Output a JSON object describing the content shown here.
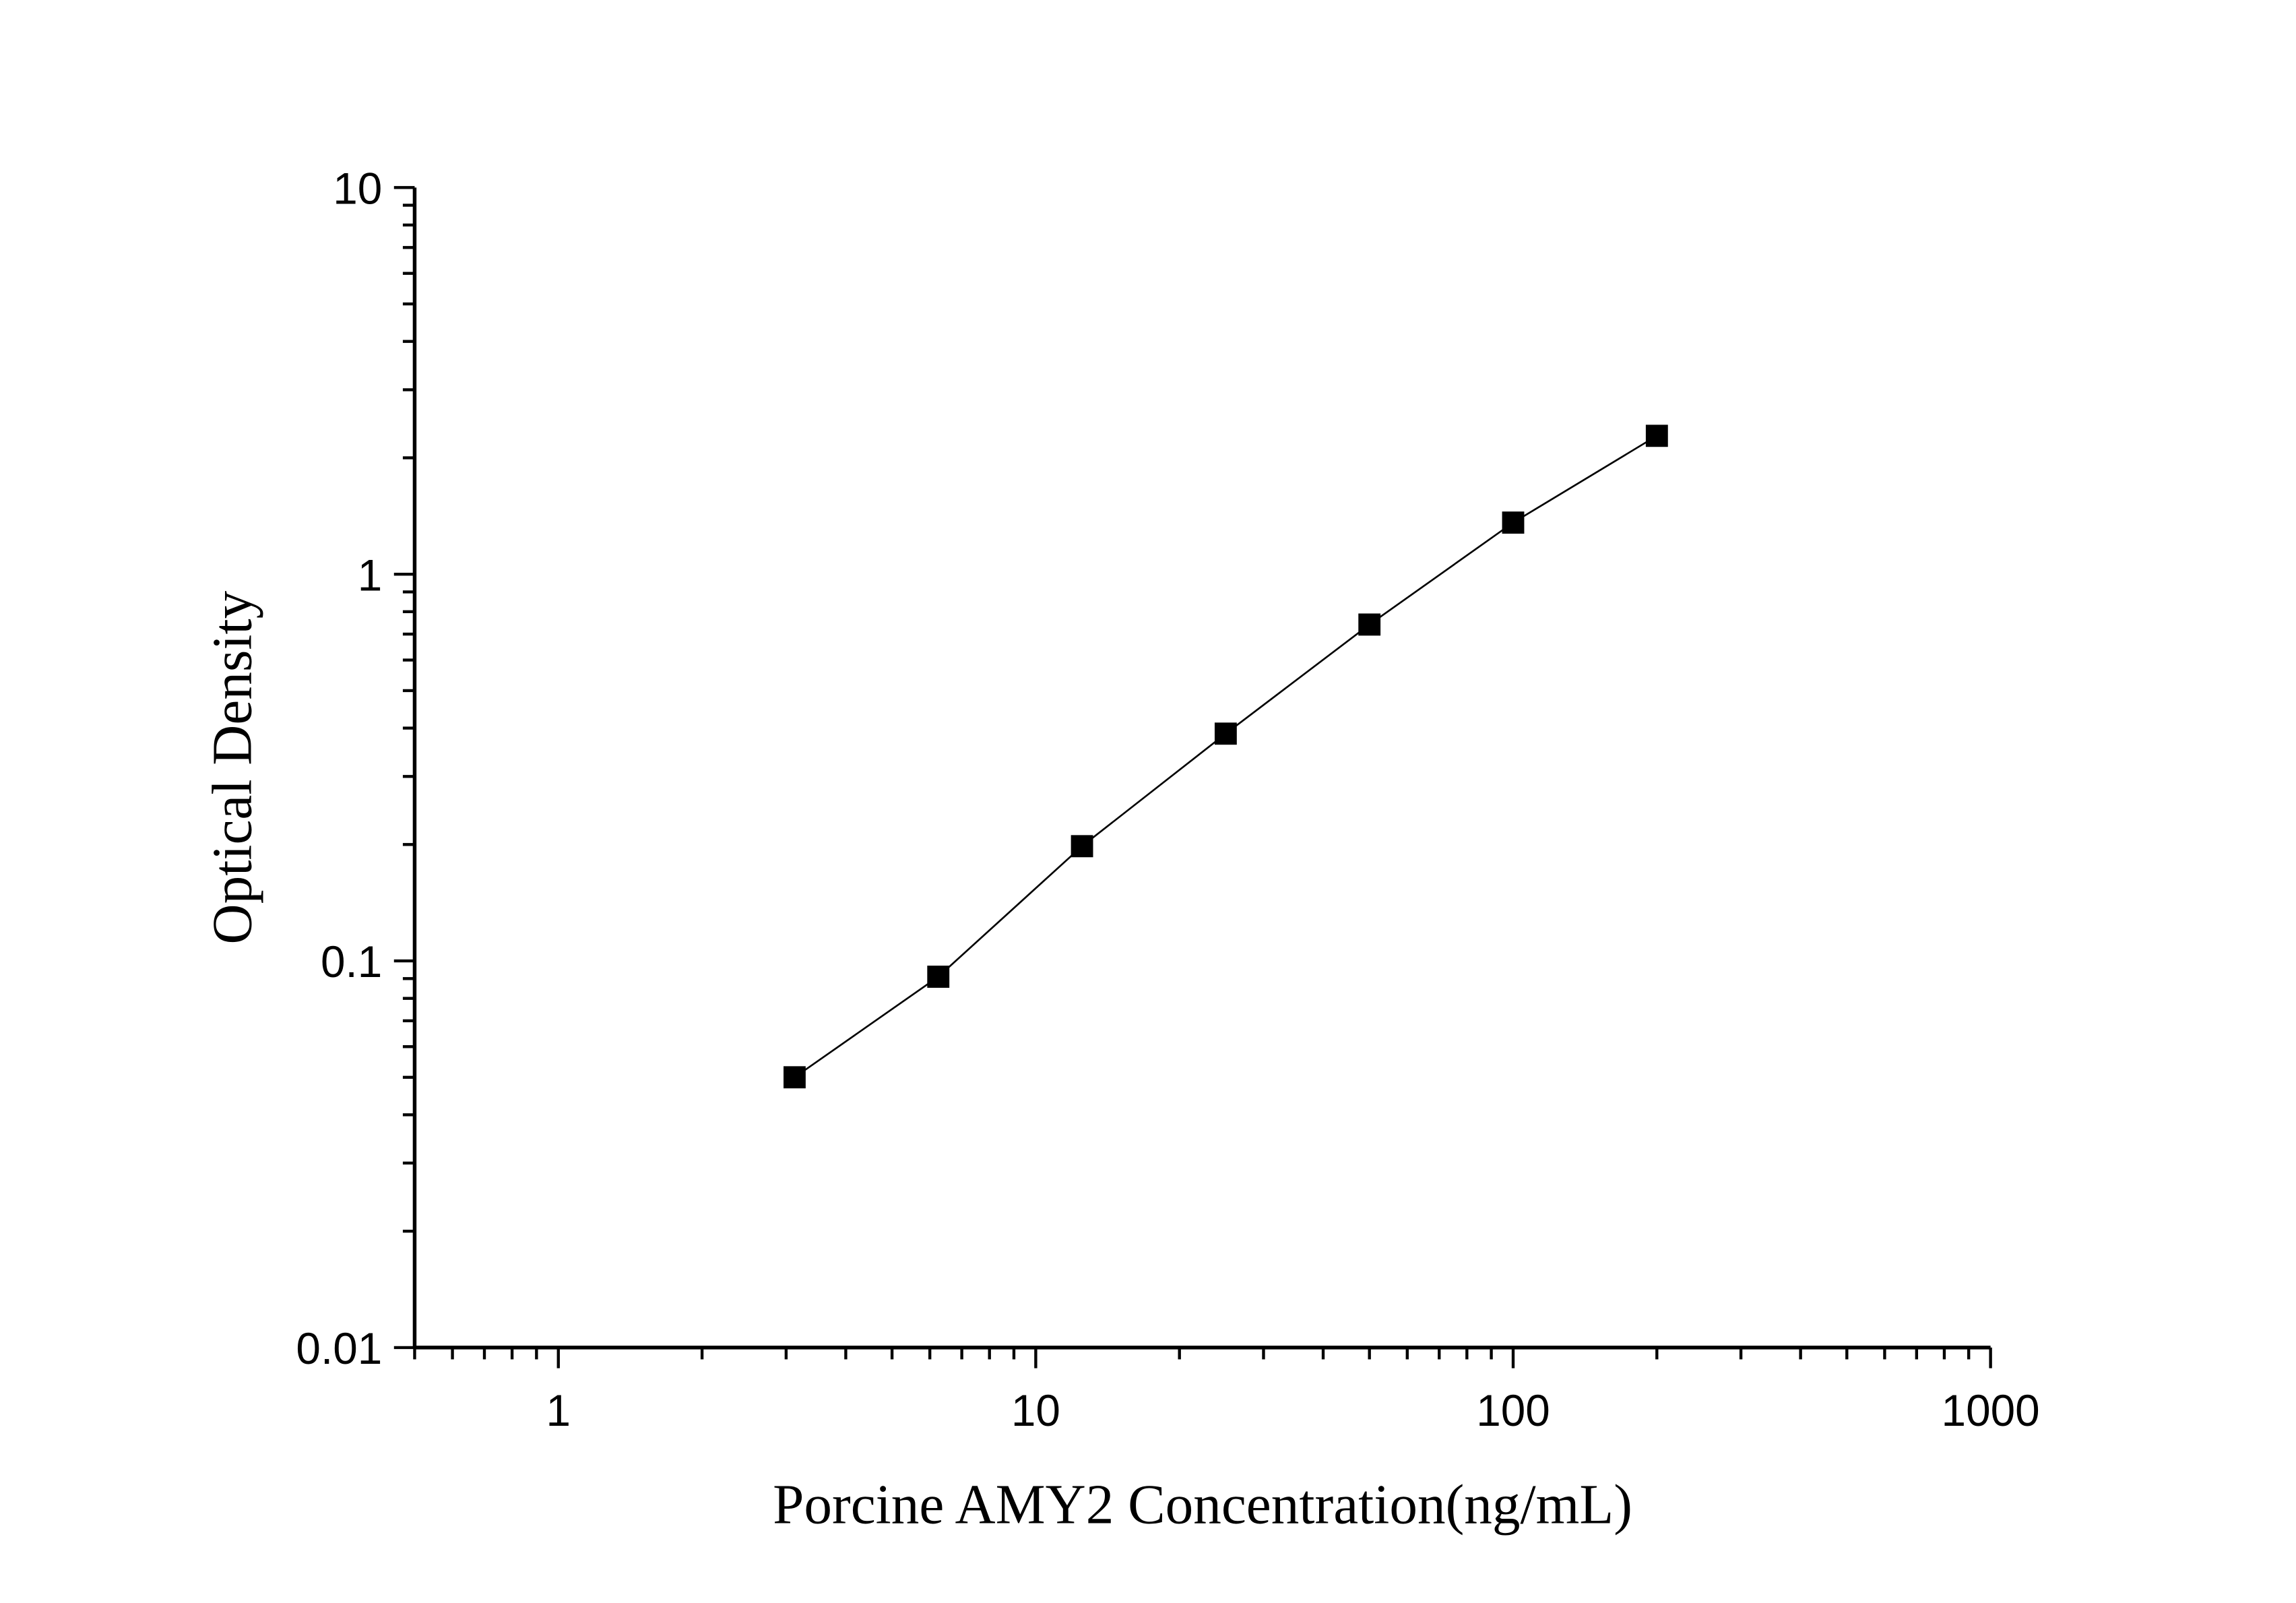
{
  "chart_data": {
    "type": "line",
    "title": "",
    "xlabel": "Porcine AMY2 Concentration(ng/mL)",
    "ylabel": "Optical Density",
    "xscale": "log",
    "yscale": "log",
    "xlim": [
      0.5,
      1000
    ],
    "ylim": [
      0.01,
      10
    ],
    "xticks": [
      "1",
      "10",
      "100",
      "1000"
    ],
    "yticks": [
      "0.01",
      "0.1",
      "1",
      "10"
    ],
    "grid": false,
    "marker": "square",
    "color": "#000000",
    "series": [
      {
        "x": [
          3.125,
          6.25,
          12.5,
          25,
          50,
          100,
          200
        ],
        "y": [
          0.05,
          0.091,
          0.198,
          0.387,
          0.741,
          1.36,
          2.28
        ]
      }
    ]
  }
}
